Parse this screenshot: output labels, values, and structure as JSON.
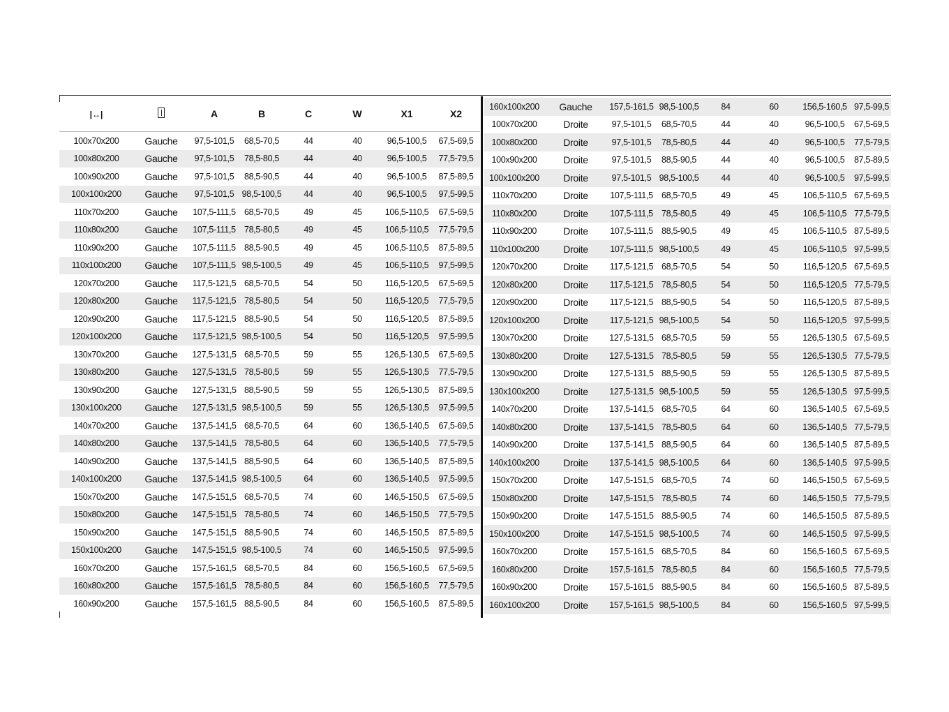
{
  "header": {
    "icons": [
      "width-arrows-icon",
      "door-icon"
    ],
    "columns": [
      "A",
      "B",
      "C",
      "W",
      "X1",
      "X2"
    ]
  },
  "left_rows": [
    [
      "100x70x200",
      "Gauche",
      "97,5-101,5",
      "68,5-70,5",
      "44",
      "40",
      "96,5-100,5",
      "67,5-69,5"
    ],
    [
      "100x80x200",
      "Gauche",
      "97,5-101,5",
      "78,5-80,5",
      "44",
      "40",
      "96,5-100,5",
      "77,5-79,5"
    ],
    [
      "100x90x200",
      "Gauche",
      "97,5-101,5",
      "88,5-90,5",
      "44",
      "40",
      "96,5-100,5",
      "87,5-89,5"
    ],
    [
      "100x100x200",
      "Gauche",
      "97,5-101,5",
      "98,5-100,5",
      "44",
      "40",
      "96,5-100,5",
      "97,5-99,5"
    ],
    [
      "110x70x200",
      "Gauche",
      "107,5-111,5",
      "68,5-70,5",
      "49",
      "45",
      "106,5-110,5",
      "67,5-69,5"
    ],
    [
      "110x80x200",
      "Gauche",
      "107,5-111,5",
      "78,5-80,5",
      "49",
      "45",
      "106,5-110,5",
      "77,5-79,5"
    ],
    [
      "110x90x200",
      "Gauche",
      "107,5-111,5",
      "88,5-90,5",
      "49",
      "45",
      "106,5-110,5",
      "87,5-89,5"
    ],
    [
      "110x100x200",
      "Gauche",
      "107,5-111,5",
      "98,5-100,5",
      "49",
      "45",
      "106,5-110,5",
      "97,5-99,5"
    ],
    [
      "120x70x200",
      "Gauche",
      "117,5-121,5",
      "68,5-70,5",
      "54",
      "50",
      "116,5-120,5",
      "67,5-69,5"
    ],
    [
      "120x80x200",
      "Gauche",
      "117,5-121,5",
      "78,5-80,5",
      "54",
      "50",
      "116,5-120,5",
      "77,5-79,5"
    ],
    [
      "120x90x200",
      "Gauche",
      "117,5-121,5",
      "88,5-90,5",
      "54",
      "50",
      "116,5-120,5",
      "87,5-89,5"
    ],
    [
      "120x100x200",
      "Gauche",
      "117,5-121,5",
      "98,5-100,5",
      "54",
      "50",
      "116,5-120,5",
      "97,5-99,5"
    ],
    [
      "130x70x200",
      "Gauche",
      "127,5-131,5",
      "68,5-70,5",
      "59",
      "55",
      "126,5-130,5",
      "67,5-69,5"
    ],
    [
      "130x80x200",
      "Gauche",
      "127,5-131,5",
      "78,5-80,5",
      "59",
      "55",
      "126,5-130,5",
      "77,5-79,5"
    ],
    [
      "130x90x200",
      "Gauche",
      "127,5-131,5",
      "88,5-90,5",
      "59",
      "55",
      "126,5-130,5",
      "87,5-89,5"
    ],
    [
      "130x100x200",
      "Gauche",
      "127,5-131,5",
      "98,5-100,5",
      "59",
      "55",
      "126,5-130,5",
      "97,5-99,5"
    ],
    [
      "140x70x200",
      "Gauche",
      "137,5-141,5",
      "68,5-70,5",
      "64",
      "60",
      "136,5-140,5",
      "67,5-69,5"
    ],
    [
      "140x80x200",
      "Gauche",
      "137,5-141,5",
      "78,5-80,5",
      "64",
      "60",
      "136,5-140,5",
      "77,5-79,5"
    ],
    [
      "140x90x200",
      "Gauche",
      "137,5-141,5",
      "88,5-90,5",
      "64",
      "60",
      "136,5-140,5",
      "87,5-89,5"
    ],
    [
      "140x100x200",
      "Gauche",
      "137,5-141,5",
      "98,5-100,5",
      "64",
      "60",
      "136,5-140,5",
      "97,5-99,5"
    ],
    [
      "150x70x200",
      "Gauche",
      "147,5-151,5",
      "68,5-70,5",
      "74",
      "60",
      "146,5-150,5",
      "67,5-69,5"
    ],
    [
      "150x80x200",
      "Gauche",
      "147,5-151,5",
      "78,5-80,5",
      "74",
      "60",
      "146,5-150,5",
      "77,5-79,5"
    ],
    [
      "150x90x200",
      "Gauche",
      "147,5-151,5",
      "88,5-90,5",
      "74",
      "60",
      "146,5-150,5",
      "87,5-89,5"
    ],
    [
      "150x100x200",
      "Gauche",
      "147,5-151,5",
      "98,5-100,5",
      "74",
      "60",
      "146,5-150,5",
      "97,5-99,5"
    ],
    [
      "160x70x200",
      "Gauche",
      "157,5-161,5",
      "68,5-70,5",
      "84",
      "60",
      "156,5-160,5",
      "67,5-69,5"
    ],
    [
      "160x80x200",
      "Gauche",
      "157,5-161,5",
      "78,5-80,5",
      "84",
      "60",
      "156,5-160,5",
      "77,5-79,5"
    ],
    [
      "160x90x200",
      "Gauche",
      "157,5-161,5",
      "88,5-90,5",
      "84",
      "60",
      "156,5-160,5",
      "87,5-89,5"
    ]
  ],
  "right_rows": [
    [
      "160x100x200",
      "Gauche",
      "157,5-161,5",
      "98,5-100,5",
      "84",
      "60",
      "156,5-160,5",
      "97,5-99,5"
    ],
    [
      "100x70x200",
      "Droite",
      "97,5-101,5",
      "68,5-70,5",
      "44",
      "40",
      "96,5-100,5",
      "67,5-69,5"
    ],
    [
      "100x80x200",
      "Droite",
      "97,5-101,5",
      "78,5-80,5",
      "44",
      "40",
      "96,5-100,5",
      "77,5-79,5"
    ],
    [
      "100x90x200",
      "Droite",
      "97,5-101,5",
      "88,5-90,5",
      "44",
      "40",
      "96,5-100,5",
      "87,5-89,5"
    ],
    [
      "100x100x200",
      "Droite",
      "97,5-101,5",
      "98,5-100,5",
      "44",
      "40",
      "96,5-100,5",
      "97,5-99,5"
    ],
    [
      "110x70x200",
      "Droite",
      "107,5-111,5",
      "68,5-70,5",
      "49",
      "45",
      "106,5-110,5",
      "67,5-69,5"
    ],
    [
      "110x80x200",
      "Droite",
      "107,5-111,5",
      "78,5-80,5",
      "49",
      "45",
      "106,5-110,5",
      "77,5-79,5"
    ],
    [
      "110x90x200",
      "Droite",
      "107,5-111,5",
      "88,5-90,5",
      "49",
      "45",
      "106,5-110,5",
      "87,5-89,5"
    ],
    [
      "110x100x200",
      "Droite",
      "107,5-111,5",
      "98,5-100,5",
      "49",
      "45",
      "106,5-110,5",
      "97,5-99,5"
    ],
    [
      "120x70x200",
      "Droite",
      "117,5-121,5",
      "68,5-70,5",
      "54",
      "50",
      "116,5-120,5",
      "67,5-69,5"
    ],
    [
      "120x80x200",
      "Droite",
      "117,5-121,5",
      "78,5-80,5",
      "54",
      "50",
      "116,5-120,5",
      "77,5-79,5"
    ],
    [
      "120x90x200",
      "Droite",
      "117,5-121,5",
      "88,5-90,5",
      "54",
      "50",
      "116,5-120,5",
      "87,5-89,5"
    ],
    [
      "120x100x200",
      "Droite",
      "117,5-121,5",
      "98,5-100,5",
      "54",
      "50",
      "116,5-120,5",
      "97,5-99,5"
    ],
    [
      "130x70x200",
      "Droite",
      "127,5-131,5",
      "68,5-70,5",
      "59",
      "55",
      "126,5-130,5",
      "67,5-69,5"
    ],
    [
      "130x80x200",
      "Droite",
      "127,5-131,5",
      "78,5-80,5",
      "59",
      "55",
      "126,5-130,5",
      "77,5-79,5"
    ],
    [
      "130x90x200",
      "Droite",
      "127,5-131,5",
      "88,5-90,5",
      "59",
      "55",
      "126,5-130,5",
      "87,5-89,5"
    ],
    [
      "130x100x200",
      "Droite",
      "127,5-131,5",
      "98,5-100,5",
      "59",
      "55",
      "126,5-130,5",
      "97,5-99,5"
    ],
    [
      "140x70x200",
      "Droite",
      "137,5-141,5",
      "68,5-70,5",
      "64",
      "60",
      "136,5-140,5",
      "67,5-69,5"
    ],
    [
      "140x80x200",
      "Droite",
      "137,5-141,5",
      "78,5-80,5",
      "64",
      "60",
      "136,5-140,5",
      "77,5-79,5"
    ],
    [
      "140x90x200",
      "Droite",
      "137,5-141,5",
      "88,5-90,5",
      "64",
      "60",
      "136,5-140,5",
      "87,5-89,5"
    ],
    [
      "140x100x200",
      "Droite",
      "137,5-141,5",
      "98,5-100,5",
      "64",
      "60",
      "136,5-140,5",
      "97,5-99,5"
    ],
    [
      "150x70x200",
      "Droite",
      "147,5-151,5",
      "68,5-70,5",
      "74",
      "60",
      "146,5-150,5",
      "67,5-69,5"
    ],
    [
      "150x80x200",
      "Droite",
      "147,5-151,5",
      "78,5-80,5",
      "74",
      "60",
      "146,5-150,5",
      "77,5-79,5"
    ],
    [
      "150x90x200",
      "Droite",
      "147,5-151,5",
      "88,5-90,5",
      "74",
      "60",
      "146,5-150,5",
      "87,5-89,5"
    ],
    [
      "150x100x200",
      "Droite",
      "147,5-151,5",
      "98,5-100,5",
      "74",
      "60",
      "146,5-150,5",
      "97,5-99,5"
    ],
    [
      "160x70x200",
      "Droite",
      "157,5-161,5",
      "68,5-70,5",
      "84",
      "60",
      "156,5-160,5",
      "67,5-69,5"
    ],
    [
      "160x80x200",
      "Droite",
      "157,5-161,5",
      "78,5-80,5",
      "84",
      "60",
      "156,5-160,5",
      "77,5-79,5"
    ],
    [
      "160x90x200",
      "Droite",
      "157,5-161,5",
      "88,5-90,5",
      "84",
      "60",
      "156,5-160,5",
      "87,5-89,5"
    ],
    [
      "160x100x200",
      "Droite",
      "157,5-161,5",
      "98,5-100,5",
      "84",
      "60",
      "156,5-160,5",
      "97,5-99,5"
    ]
  ],
  "colors": {
    "stripe": "#ebebeb",
    "rule": "#111111"
  }
}
